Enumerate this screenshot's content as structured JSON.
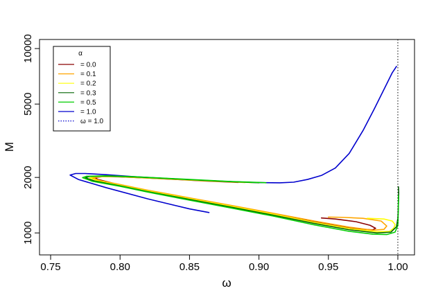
{
  "chart_data": {
    "type": "line",
    "xlabel": "ω",
    "ylabel": "M",
    "xlim": [
      0.742,
      1.012
    ],
    "ylim_log": [
      760,
      11200
    ],
    "y_scale": "log",
    "grid": false,
    "legend_placement": "top-left",
    "x_ticks": [
      {
        "value": 0.75,
        "label": "0.75"
      },
      {
        "value": 0.8,
        "label": "0.80"
      },
      {
        "value": 0.85,
        "label": "0.85"
      },
      {
        "value": 0.9,
        "label": "0.90"
      },
      {
        "value": 0.95,
        "label": "0.95"
      },
      {
        "value": 1.0,
        "label": "1.00"
      }
    ],
    "y_ticks": [
      {
        "value": 1000,
        "label": "1000"
      },
      {
        "value": 2000,
        "label": "2000"
      },
      {
        "value": 5000,
        "label": "5000"
      },
      {
        "value": 10000,
        "label": "10000"
      }
    ],
    "legend_title": "α",
    "legend_entries": [
      {
        "label": "= 0.0",
        "color": "#8b0000",
        "dashed": false
      },
      {
        "label": "= 0.1",
        "color": "#ffa500",
        "dashed": false
      },
      {
        "label": "= 0.2",
        "color": "#ffff00",
        "dashed": false
      },
      {
        "label": "= 0.3",
        "color": "#006400",
        "dashed": false
      },
      {
        "label": "= 0.5",
        "color": "#00cd00",
        "dashed": false
      },
      {
        "label": "= 1.0",
        "color": "#0000cd",
        "dashed": false
      },
      {
        "label": "ω = 1.0",
        "color": "#0000cd",
        "dashed": true
      }
    ],
    "vline": {
      "x": 1.0,
      "color": "#000000",
      "style": "dotted"
    },
    "series": [
      {
        "color": "#0000cd",
        "points": [
          [
            0.999,
            8000
          ],
          [
            0.996,
            7400
          ],
          [
            0.99,
            6000
          ],
          [
            0.983,
            4700
          ],
          [
            0.975,
            3600
          ],
          [
            0.965,
            2700
          ],
          [
            0.955,
            2250
          ],
          [
            0.945,
            2050
          ],
          [
            0.935,
            1950
          ],
          [
            0.925,
            1885
          ],
          [
            0.915,
            1870
          ],
          [
            0.9,
            1875
          ],
          [
            0.885,
            1890
          ],
          [
            0.87,
            1910
          ],
          [
            0.85,
            1940
          ],
          [
            0.83,
            1980
          ],
          [
            0.81,
            2020
          ],
          [
            0.79,
            2070
          ],
          [
            0.775,
            2100
          ],
          [
            0.768,
            2100
          ],
          [
            0.764,
            2060
          ],
          [
            0.77,
            1950
          ],
          [
            0.79,
            1760
          ],
          [
            0.82,
            1530
          ],
          [
            0.85,
            1350
          ],
          [
            0.864,
            1290
          ]
        ]
      },
      {
        "color": "#8b0000",
        "points": [
          [
            0.885,
            1880
          ],
          [
            0.88,
            1885
          ],
          [
            0.86,
            1915
          ],
          [
            0.84,
            1950
          ],
          [
            0.82,
            1985
          ],
          [
            0.8,
            2015
          ],
          [
            0.788,
            2020
          ],
          [
            0.782,
            2000
          ],
          [
            0.784,
            1950
          ],
          [
            0.795,
            1860
          ],
          [
            0.815,
            1730
          ],
          [
            0.84,
            1590
          ],
          [
            0.87,
            1440
          ],
          [
            0.9,
            1310
          ],
          [
            0.93,
            1190
          ],
          [
            0.955,
            1095
          ],
          [
            0.975,
            1045
          ],
          [
            0.982,
            1040
          ],
          [
            0.984,
            1060
          ],
          [
            0.98,
            1100
          ],
          [
            0.97,
            1150
          ],
          [
            0.955,
            1190
          ],
          [
            0.945,
            1205
          ]
        ]
      },
      {
        "color": "#ffa500",
        "points": [
          [
            0.89,
            1878
          ],
          [
            0.87,
            1905
          ],
          [
            0.85,
            1935
          ],
          [
            0.83,
            1970
          ],
          [
            0.81,
            2000
          ],
          [
            0.795,
            2020
          ],
          [
            0.784,
            2015
          ],
          [
            0.78,
            1985
          ],
          [
            0.786,
            1920
          ],
          [
            0.8,
            1830
          ],
          [
            0.82,
            1705
          ],
          [
            0.85,
            1550
          ],
          [
            0.88,
            1410
          ],
          [
            0.91,
            1280
          ],
          [
            0.94,
            1160
          ],
          [
            0.965,
            1075
          ],
          [
            0.982,
            1035
          ],
          [
            0.99,
            1045
          ],
          [
            0.992,
            1090
          ],
          [
            0.988,
            1160
          ],
          [
            0.975,
            1200
          ],
          [
            0.96,
            1215
          ],
          [
            0.95,
            1218
          ]
        ]
      },
      {
        "color": "#ffff00",
        "points": [
          [
            0.895,
            1875
          ],
          [
            0.87,
            1908
          ],
          [
            0.85,
            1940
          ],
          [
            0.83,
            1975
          ],
          [
            0.81,
            2005
          ],
          [
            0.795,
            2025
          ],
          [
            0.782,
            2018
          ],
          [
            0.778,
            1985
          ],
          [
            0.784,
            1915
          ],
          [
            0.8,
            1815
          ],
          [
            0.82,
            1690
          ],
          [
            0.85,
            1535
          ],
          [
            0.88,
            1395
          ],
          [
            0.91,
            1265
          ],
          [
            0.94,
            1140
          ],
          [
            0.965,
            1055
          ],
          [
            0.985,
            1015
          ],
          [
            0.994,
            1020
          ],
          [
            0.997,
            1060
          ],
          [
            0.998,
            1110
          ],
          [
            0.996,
            1160
          ],
          [
            0.99,
            1190
          ],
          [
            0.978,
            1200
          ]
        ]
      },
      {
        "color": "#006400",
        "points": [
          [
            0.9,
            1872
          ],
          [
            0.875,
            1905
          ],
          [
            0.85,
            1945
          ],
          [
            0.83,
            1980
          ],
          [
            0.81,
            2012
          ],
          [
            0.79,
            2035
          ],
          [
            0.778,
            2025
          ],
          [
            0.775,
            1990
          ],
          [
            0.782,
            1910
          ],
          [
            0.8,
            1800
          ],
          [
            0.82,
            1675
          ],
          [
            0.85,
            1520
          ],
          [
            0.88,
            1380
          ],
          [
            0.91,
            1250
          ],
          [
            0.94,
            1125
          ],
          [
            0.965,
            1040
          ],
          [
            0.985,
            1000
          ],
          [
            0.995,
            1010
          ],
          [
            0.999,
            1080
          ],
          [
            1.0,
            1200
          ],
          [
            1.0003,
            1350
          ],
          [
            1.0005,
            1500
          ],
          [
            1.0006,
            1650
          ],
          [
            1.0005,
            1740
          ],
          [
            1.0004,
            1780
          ]
        ]
      },
      {
        "color": "#00cd00",
        "points": [
          [
            0.905,
            1872
          ],
          [
            0.88,
            1900
          ],
          [
            0.85,
            1950
          ],
          [
            0.83,
            1985
          ],
          [
            0.81,
            2018
          ],
          [
            0.79,
            2040
          ],
          [
            0.776,
            2030
          ],
          [
            0.773,
            1995
          ],
          [
            0.78,
            1905
          ],
          [
            0.8,
            1790
          ],
          [
            0.82,
            1665
          ],
          [
            0.85,
            1505
          ],
          [
            0.88,
            1365
          ],
          [
            0.91,
            1235
          ],
          [
            0.94,
            1105
          ],
          [
            0.965,
            1020
          ],
          [
            0.982,
            985
          ],
          [
            0.992,
            980
          ],
          [
            0.998,
            1010
          ],
          [
            1.0,
            1100
          ],
          [
            1.0003,
            1300
          ],
          [
            1.0004,
            1500
          ],
          [
            1.0004,
            1600
          ]
        ]
      }
    ]
  }
}
